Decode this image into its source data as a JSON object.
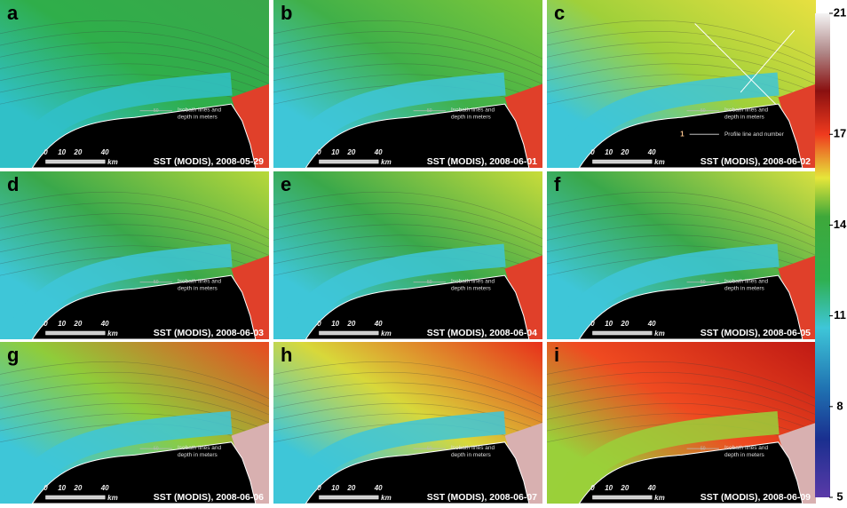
{
  "panels": [
    {
      "letter": "a",
      "caption": "SST (MODIS), 2008-05-29"
    },
    {
      "letter": "b",
      "caption": "SST (MODIS), 2008-06-01"
    },
    {
      "letter": "c",
      "caption": "SST (MODIS), 2008-06-02"
    },
    {
      "letter": "d",
      "caption": "SST (MODIS), 2008-06-03"
    },
    {
      "letter": "e",
      "caption": "SST (MODIS), 2008-06-04"
    },
    {
      "letter": "f",
      "caption": "SST (MODIS), 2008-06-05"
    },
    {
      "letter": "g",
      "caption": "SST (MODIS), 2008-06-06"
    },
    {
      "letter": "h",
      "caption": "SST (MODIS), 2008-06-07"
    },
    {
      "letter": "i",
      "caption": "SST (MODIS), 2008-06-09"
    }
  ],
  "isobath_legend": {
    "depth": "50",
    "lines": [
      "Isobath lines and",
      "depth in meters"
    ]
  },
  "profile_legend": {
    "number": "1",
    "text": "Profile line and number"
  },
  "scale_bar": {
    "labels": [
      "0",
      "10",
      "20",
      "40"
    ],
    "unit": "km"
  },
  "colorbar": {
    "ylim": [
      5,
      21
    ],
    "yticks": [
      5,
      8,
      11,
      14,
      17,
      21
    ]
  }
}
